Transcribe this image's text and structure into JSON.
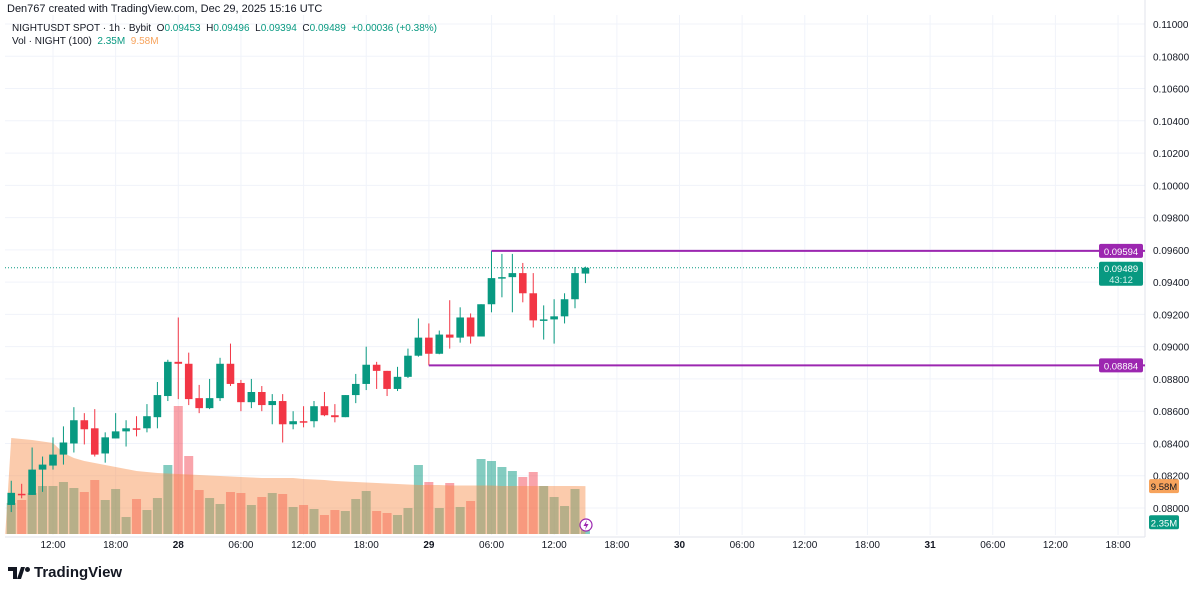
{
  "header": {
    "attribution": "Den767 created with TradingView.com, Dec 29, 2025 15:16 UTC"
  },
  "legend": {
    "symbol": "NIGHTUSDT SPOT · 1h · Bybit",
    "o_label": "O",
    "o": "0.09453",
    "h_label": "H",
    "h": "0.09496",
    "l_label": "L",
    "l": "0.09394",
    "c_label": "C",
    "c": "0.09489",
    "change": "+0.00036 (+0.38%)",
    "vol_label": "Vol · NIGHT (100)",
    "vol": "2.35M",
    "vol_ma": "9.58M"
  },
  "logo": "TradingView",
  "colors": {
    "up": "#089981",
    "down": "#f23645",
    "level": "#9c27b0",
    "vol_ma": "#f7a35c",
    "last": "#089981"
  },
  "chart_data": {
    "type": "candlestick",
    "interval": "1h",
    "first_bar": "Dec 27 08:00",
    "ylim": [
      0.079,
      0.111
    ],
    "y_ticks": [
      "0.11000",
      "0.10800",
      "0.10600",
      "0.10400",
      "0.10200",
      "0.10000",
      "0.09800",
      "0.09600",
      "0.09400",
      "0.09200",
      "0.09000",
      "0.08800",
      "0.08600",
      "0.08400",
      "0.08200",
      "0.08000"
    ],
    "x_ticks": [
      "12:00",
      "18:00",
      "28",
      "06:00",
      "12:00",
      "18:00",
      "29",
      "06:00",
      "12:00",
      "18:00",
      "30",
      "06:00",
      "12:00",
      "18:00",
      "31",
      "06:00",
      "12:00",
      "18:00"
    ],
    "ohlc": [
      [
        0.08019,
        0.08169,
        0.07975,
        0.08094
      ],
      [
        0.08088,
        0.0815,
        0.0806,
        0.08081
      ],
      [
        0.08081,
        0.08375,
        0.08081,
        0.08238
      ],
      [
        0.08238,
        0.08319,
        0.081,
        0.08269
      ],
      [
        0.08263,
        0.08438,
        0.08238,
        0.08331
      ],
      [
        0.08331,
        0.08506,
        0.08269,
        0.08406
      ],
      [
        0.084,
        0.08625,
        0.08344,
        0.08544
      ],
      [
        0.08544,
        0.08588,
        0.08394,
        0.08488
      ],
      [
        0.08494,
        0.08613,
        0.08319,
        0.08331
      ],
      [
        0.08338,
        0.08469,
        0.08281,
        0.08438
      ],
      [
        0.08431,
        0.08588,
        0.08431,
        0.08475
      ],
      [
        0.08475,
        0.08544,
        0.08381,
        0.08494
      ],
      [
        0.08494,
        0.08569,
        0.08444,
        0.08488
      ],
      [
        0.08494,
        0.08644,
        0.08469,
        0.08569
      ],
      [
        0.08563,
        0.08781,
        0.08494,
        0.087
      ],
      [
        0.08694,
        0.08919,
        0.08663,
        0.08906
      ],
      [
        0.08906,
        0.09181,
        0.08675,
        0.08894
      ],
      [
        0.08894,
        0.08963,
        0.08638,
        0.08675
      ],
      [
        0.08681,
        0.08763,
        0.08588,
        0.08619
      ],
      [
        0.08619,
        0.088,
        0.08613,
        0.08681
      ],
      [
        0.08681,
        0.08931,
        0.08663,
        0.08894
      ],
      [
        0.08894,
        0.09019,
        0.08756,
        0.08769
      ],
      [
        0.08775,
        0.08794,
        0.086,
        0.08656
      ],
      [
        0.08656,
        0.088,
        0.08619,
        0.08719
      ],
      [
        0.08719,
        0.08756,
        0.086,
        0.08638
      ],
      [
        0.08638,
        0.08706,
        0.08519,
        0.08663
      ],
      [
        0.08663,
        0.08706,
        0.08406,
        0.08519
      ],
      [
        0.08519,
        0.086,
        0.08488,
        0.08538
      ],
      [
        0.08538,
        0.08631,
        0.085,
        0.08531
      ],
      [
        0.08538,
        0.08663,
        0.085,
        0.08631
      ],
      [
        0.08631,
        0.08719,
        0.08569,
        0.08575
      ],
      [
        0.08575,
        0.08644,
        0.08531,
        0.08563
      ],
      [
        0.08563,
        0.087,
        0.08563,
        0.087
      ],
      [
        0.087,
        0.08831,
        0.0865,
        0.08769
      ],
      [
        0.08769,
        0.09,
        0.08731,
        0.08888
      ],
      [
        0.08888,
        0.08906,
        0.08738,
        0.0885
      ],
      [
        0.0885,
        0.0885,
        0.08694,
        0.08738
      ],
      [
        0.08738,
        0.08875,
        0.08725,
        0.08813
      ],
      [
        0.08813,
        0.08988,
        0.08806,
        0.08944
      ],
      [
        0.08944,
        0.09175,
        0.08938,
        0.09056
      ],
      [
        0.09056,
        0.09144,
        0.08884,
        0.08956
      ],
      [
        0.08956,
        0.091,
        0.08953,
        0.09075
      ],
      [
        0.09075,
        0.09288,
        0.08988,
        0.09056
      ],
      [
        0.09056,
        0.09244,
        0.09025,
        0.09181
      ],
      [
        0.09181,
        0.09206,
        0.09019,
        0.09063
      ],
      [
        0.09063,
        0.09263,
        0.09063,
        0.09263
      ],
      [
        0.09263,
        0.09594,
        0.09213,
        0.09425
      ],
      [
        0.09425,
        0.09575,
        0.09306,
        0.09431
      ],
      [
        0.09431,
        0.09575,
        0.09213,
        0.09456
      ],
      [
        0.09456,
        0.09519,
        0.09275,
        0.09331
      ],
      [
        0.09331,
        0.09456,
        0.09119,
        0.09163
      ],
      [
        0.09163,
        0.09256,
        0.09044,
        0.09169
      ],
      [
        0.09169,
        0.09294,
        0.09019,
        0.09188
      ],
      [
        0.09188,
        0.09331,
        0.09144,
        0.09294
      ],
      [
        0.09294,
        0.09494,
        0.09238,
        0.09456
      ],
      [
        0.09453,
        0.09496,
        0.09394,
        0.09489
      ]
    ],
    "volume_millions": [
      6.2,
      6.8,
      8.2,
      9.6,
      9.6,
      10.4,
      9.2,
      8.4,
      10.8,
      6.8,
      9.0,
      3.4,
      7.0,
      4.8,
      7.2,
      13.8,
      25.6,
      15.6,
      8.8,
      7.2,
      6.0,
      8.4,
      8.2,
      5.8,
      7.4,
      8.2,
      8.0,
      5.4,
      5.8,
      5.0,
      3.8,
      4.8,
      4.6,
      7.0,
      8.6,
      4.6,
      4.2,
      3.8,
      5.2,
      13.8,
      10.4,
      5.2,
      10.2,
      5.4,
      6.6,
      15.0,
      14.6,
      13.4,
      12.6,
      11.4,
      12.4,
      9.6,
      7.4,
      5.6,
      9.0,
      2.35
    ],
    "volume_ma_millions": [
      19.2,
      19.0,
      18.8,
      18.5,
      18.2,
      16.2,
      15.2,
      14.6,
      14.2,
      13.8,
      13.4,
      13.0,
      12.6,
      12.4,
      12.2,
      12.1,
      12.0,
      11.9,
      11.8,
      11.7,
      11.6,
      11.5,
      11.4,
      11.3,
      11.2,
      11.2,
      11.2,
      11.2,
      11.0,
      10.9,
      10.8,
      10.6,
      10.5,
      10.4,
      10.3,
      10.2,
      10.1,
      10.0,
      9.9,
      9.8,
      9.8,
      9.8,
      9.7,
      9.7,
      9.7,
      9.7,
      9.7,
      9.6,
      9.6,
      9.6,
      9.6,
      9.6,
      9.6,
      9.6,
      9.6,
      9.58
    ],
    "levels": [
      {
        "price": 0.09594,
        "label": "0.09594",
        "from_bar": 46
      },
      {
        "price": 0.08884,
        "label": "0.08884",
        "from_bar": 40
      }
    ],
    "last_price": {
      "label": "0.09489",
      "countdown": "43:12",
      "price": 0.09489
    },
    "volume_labels": {
      "ma": "9.58M",
      "last": "2.35M"
    }
  }
}
